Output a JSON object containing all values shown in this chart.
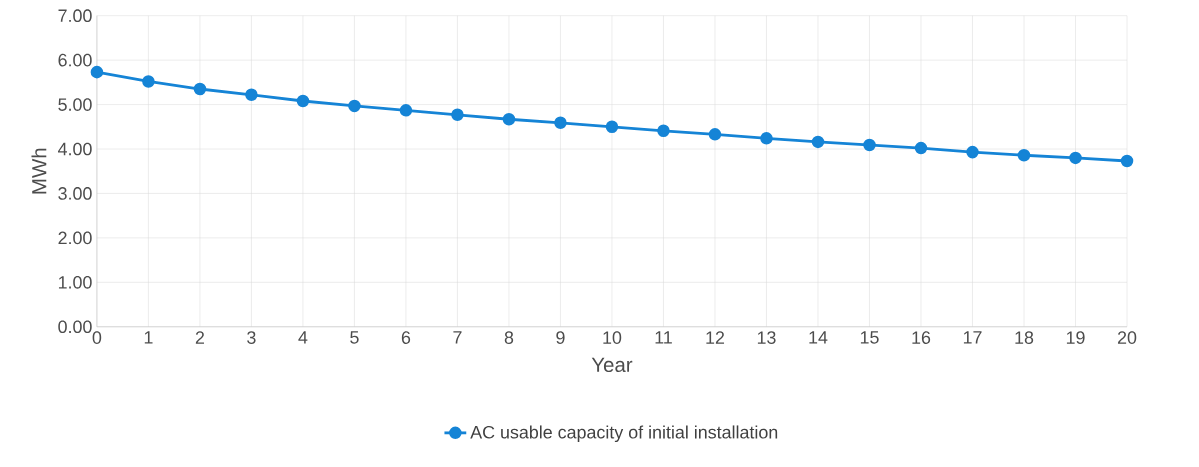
{
  "chart_data": {
    "type": "line",
    "xlabel": "Year",
    "ylabel": "MWh",
    "x": [
      0,
      1,
      2,
      3,
      4,
      5,
      6,
      7,
      8,
      9,
      10,
      11,
      12,
      13,
      14,
      15,
      16,
      17,
      18,
      19,
      20
    ],
    "series": [
      {
        "name": "AC usable capacity of initial installation",
        "color": "#1584d6",
        "values": [
          5.73,
          5.52,
          5.35,
          5.22,
          5.08,
          4.97,
          4.87,
          4.77,
          4.67,
          4.59,
          4.5,
          4.41,
          4.33,
          4.24,
          4.16,
          4.09,
          4.02,
          3.93,
          3.86,
          3.8,
          3.73
        ]
      }
    ],
    "xlim": [
      0,
      20
    ],
    "xticks": [
      0,
      1,
      2,
      3,
      4,
      5,
      6,
      7,
      8,
      9,
      10,
      11,
      12,
      13,
      14,
      15,
      16,
      17,
      18,
      19,
      20
    ],
    "ylim": [
      0,
      7
    ],
    "yticks": [
      {
        "value": 0,
        "label": "0.00"
      },
      {
        "value": 1,
        "label": "1.00"
      },
      {
        "value": 2,
        "label": "2.00"
      },
      {
        "value": 3,
        "label": "3.00"
      },
      {
        "value": 4,
        "label": "4.00"
      },
      {
        "value": 5,
        "label": "5.00"
      },
      {
        "value": 6,
        "label": "6.00"
      },
      {
        "value": 7,
        "label": "7.00"
      }
    ],
    "grid": true,
    "legend": "bottom",
    "marker": "circle",
    "line_style": "solid"
  }
}
